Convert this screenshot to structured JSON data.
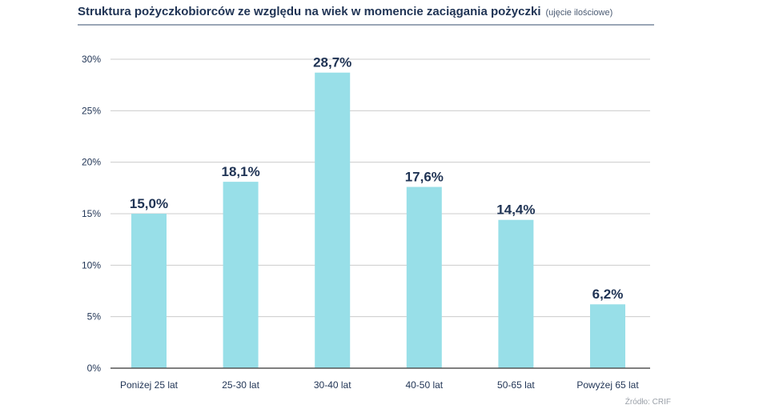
{
  "title": "Struktura pożyczkobiorców ze względu na wiek w momencie zaciągania pożyczki",
  "subtitle": "(ujęcie ilościowe)",
  "source": "Źródło: CRIF",
  "colors": {
    "bar": "#98dfe8",
    "text": "#1f3354",
    "grid": "#cccccc",
    "axis": "#555555"
  },
  "chart_data": {
    "type": "bar",
    "categories": [
      "Poniżej 25 lat",
      "25-30 lat",
      "30-40 lat",
      "40-50 lat",
      "50-65 lat",
      "Powyżej 65 lat"
    ],
    "values": [
      15.0,
      18.1,
      28.7,
      17.6,
      14.4,
      6.2
    ],
    "data_labels": [
      "15,0%",
      "18,1%",
      "28,7%",
      "17,6%",
      "14,4%",
      "6,2%"
    ],
    "yticks": [
      0,
      5,
      10,
      15,
      20,
      25,
      30
    ],
    "ytick_labels": [
      "0%",
      "5%",
      "10%",
      "15%",
      "20%",
      "25%",
      "30%"
    ],
    "ylim": [
      0,
      30
    ],
    "grid": true,
    "title": "Struktura pożyczkobiorców ze względu na wiek w momencie zaciągania pożyczki"
  }
}
